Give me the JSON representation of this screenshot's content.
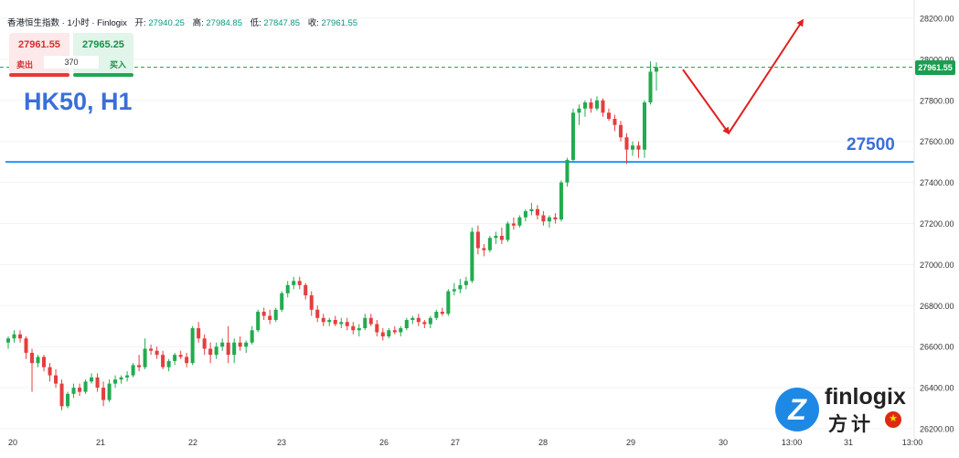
{
  "header": {
    "instrument": "香港恒生指数 · 1小时 · Finlogix",
    "open_label": "开:",
    "open": "27940.25",
    "high_label": "高:",
    "high": "27984.85",
    "low_label": "低:",
    "low": "27847.85",
    "close_label": "收:",
    "close": "27961.55"
  },
  "trade_panel": {
    "sell_price": "27961.55",
    "buy_price": "27965.25",
    "sell_label": "卖出",
    "buy_label": "买入",
    "quantity": "370"
  },
  "annotations": {
    "symbol": "HK50, H1",
    "level_label": "27500",
    "current_price": "27961.55"
  },
  "logo": {
    "word": "finlogix",
    "chinese": "方计",
    "mark_letter": "Z"
  },
  "colors": {
    "up": "#22ab4f",
    "down": "#e53e3e",
    "level": "#2196f3",
    "arrow": "#e0201e",
    "annotation": "#3a6fd8"
  },
  "chart_data": {
    "type": "candlestick",
    "y_ticks": [
      "26200.00",
      "26400.00",
      "26600.00",
      "26800.00",
      "27000.00",
      "27200.00",
      "27400.00",
      "27600.00",
      "27800.00",
      "28000.00",
      "28200.00"
    ],
    "ylim": [
      26180,
      28260
    ],
    "x_ticks": [
      "20",
      "21",
      "22",
      "23",
      "26",
      "27",
      "28",
      "29",
      "30",
      "13:00",
      "31",
      "13:00"
    ],
    "horizontal_level": 27500,
    "current_price": 27961.55,
    "candles": [
      [
        26620,
        26650,
        26590,
        26640
      ],
      [
        26640,
        26680,
        26620,
        26660
      ],
      [
        26660,
        26680,
        26620,
        26640
      ],
      [
        26640,
        26650,
        26540,
        26570
      ],
      [
        26570,
        26590,
        26380,
        26520
      ],
      [
        26520,
        26560,
        26500,
        26550
      ],
      [
        26550,
        26560,
        26480,
        26500
      ],
      [
        26500,
        26520,
        26430,
        26460
      ],
      [
        26460,
        26490,
        26400,
        26420
      ],
      [
        26420,
        26440,
        26290,
        26310
      ],
      [
        26310,
        26380,
        26300,
        26370
      ],
      [
        26370,
        26420,
        26350,
        26400
      ],
      [
        26400,
        26420,
        26360,
        26380
      ],
      [
        26380,
        26440,
        26370,
        26430
      ],
      [
        26430,
        26470,
        26420,
        26450
      ],
      [
        26450,
        26470,
        26380,
        26400
      ],
      [
        26400,
        26430,
        26310,
        26340
      ],
      [
        26340,
        26440,
        26330,
        26420
      ],
      [
        26420,
        26460,
        26400,
        26440
      ],
      [
        26440,
        26460,
        26420,
        26450
      ],
      [
        26450,
        26480,
        26430,
        26460
      ],
      [
        26460,
        26520,
        26450,
        26510
      ],
      [
        26510,
        26560,
        26480,
        26500
      ],
      [
        26500,
        26640,
        26490,
        26590
      ],
      [
        26590,
        26610,
        26560,
        26580
      ],
      [
        26580,
        26600,
        26540,
        26560
      ],
      [
        26560,
        26580,
        26490,
        26500
      ],
      [
        26500,
        26540,
        26480,
        26530
      ],
      [
        26530,
        26570,
        26510,
        26560
      ],
      [
        26560,
        26580,
        26540,
        26550
      ],
      [
        26550,
        26570,
        26500,
        26520
      ],
      [
        26520,
        26700,
        26510,
        26690
      ],
      [
        26690,
        26720,
        26620,
        26640
      ],
      [
        26640,
        26660,
        26560,
        26590
      ],
      [
        26590,
        26620,
        26520,
        26560
      ],
      [
        26560,
        26620,
        26540,
        26600
      ],
      [
        26600,
        26640,
        26580,
        26620
      ],
      [
        26620,
        26700,
        26520,
        26560
      ],
      [
        26560,
        26640,
        26520,
        26620
      ],
      [
        26620,
        26650,
        26580,
        26600
      ],
      [
        26600,
        26630,
        26570,
        26620
      ],
      [
        26620,
        26700,
        26610,
        26680
      ],
      [
        26680,
        26780,
        26670,
        26770
      ],
      [
        26770,
        26790,
        26730,
        26750
      ],
      [
        26750,
        26780,
        26710,
        26730
      ],
      [
        26730,
        26790,
        26720,
        26780
      ],
      [
        26780,
        26870,
        26770,
        26860
      ],
      [
        26860,
        26920,
        26840,
        26900
      ],
      [
        26900,
        26940,
        26880,
        26920
      ],
      [
        26920,
        26940,
        26880,
        26900
      ],
      [
        26900,
        26910,
        26830,
        26850
      ],
      [
        26850,
        26870,
        26750,
        26780
      ],
      [
        26780,
        26800,
        26720,
        26740
      ],
      [
        26740,
        26760,
        26700,
        26720
      ],
      [
        26720,
        26740,
        26700,
        26730
      ],
      [
        26730,
        26750,
        26700,
        26710
      ],
      [
        26710,
        26740,
        26690,
        26720
      ],
      [
        26720,
        26740,
        26680,
        26700
      ],
      [
        26700,
        26720,
        26660,
        26680
      ],
      [
        26680,
        26710,
        26650,
        26690
      ],
      [
        26690,
        26760,
        26680,
        26740
      ],
      [
        26740,
        26760,
        26700,
        26710
      ],
      [
        26710,
        26730,
        26650,
        26670
      ],
      [
        26670,
        26690,
        26630,
        26650
      ],
      [
        26650,
        26690,
        26640,
        26680
      ],
      [
        26680,
        26700,
        26660,
        26670
      ],
      [
        26670,
        26700,
        26650,
        26690
      ],
      [
        26690,
        26740,
        26680,
        26730
      ],
      [
        26730,
        26750,
        26710,
        26740
      ],
      [
        26740,
        26760,
        26700,
        26720
      ],
      [
        26720,
        26730,
        26690,
        26710
      ],
      [
        26710,
        26750,
        26690,
        26740
      ],
      [
        26740,
        26780,
        26730,
        26770
      ],
      [
        26770,
        26790,
        26750,
        26760
      ],
      [
        26760,
        26880,
        26750,
        26870
      ],
      [
        26870,
        26910,
        26850,
        26880
      ],
      [
        26880,
        26930,
        26860,
        26900
      ],
      [
        26900,
        26940,
        26880,
        26920
      ],
      [
        26920,
        27180,
        26910,
        27160
      ],
      [
        27160,
        27190,
        27050,
        27080
      ],
      [
        27080,
        27100,
        27040,
        27070
      ],
      [
        27070,
        27140,
        27060,
        27130
      ],
      [
        27130,
        27160,
        27100,
        27140
      ],
      [
        27140,
        27180,
        27100,
        27120
      ],
      [
        27120,
        27210,
        27110,
        27200
      ],
      [
        27200,
        27230,
        27170,
        27190
      ],
      [
        27190,
        27240,
        27180,
        27230
      ],
      [
        27230,
        27270,
        27210,
        27260
      ],
      [
        27260,
        27300,
        27240,
        27270
      ],
      [
        27270,
        27290,
        27220,
        27240
      ],
      [
        27240,
        27260,
        27190,
        27210
      ],
      [
        27210,
        27240,
        27180,
        27230
      ],
      [
        27230,
        27250,
        27200,
        27220
      ],
      [
        27220,
        27410,
        27210,
        27400
      ],
      [
        27400,
        27520,
        27380,
        27510
      ],
      [
        27510,
        27760,
        27500,
        27740
      ],
      [
        27740,
        27780,
        27680,
        27760
      ],
      [
        27760,
        27800,
        27720,
        27790
      ],
      [
        27790,
        27810,
        27740,
        27760
      ],
      [
        27760,
        27820,
        27750,
        27800
      ],
      [
        27800,
        27810,
        27720,
        27740
      ],
      [
        27740,
        27760,
        27700,
        27710
      ],
      [
        27710,
        27730,
        27650,
        27680
      ],
      [
        27680,
        27700,
        27600,
        27620
      ],
      [
        27620,
        27640,
        27490,
        27560
      ],
      [
        27560,
        27600,
        27530,
        27580
      ],
      [
        27580,
        27600,
        27520,
        27560
      ],
      [
        27560,
        27800,
        27520,
        27790
      ],
      [
        27790,
        27990,
        27780,
        27940
      ],
      [
        27940,
        27985,
        27848,
        27961.55
      ]
    ],
    "forecast_arrows": [
      {
        "from": [
          "29 18:00",
          27950
        ],
        "to": [
          "30 03:00",
          27640
        ]
      },
      {
        "from": [
          "30 03:00",
          27640
        ],
        "to": [
          "30 23:00",
          28190
        ]
      }
    ]
  }
}
